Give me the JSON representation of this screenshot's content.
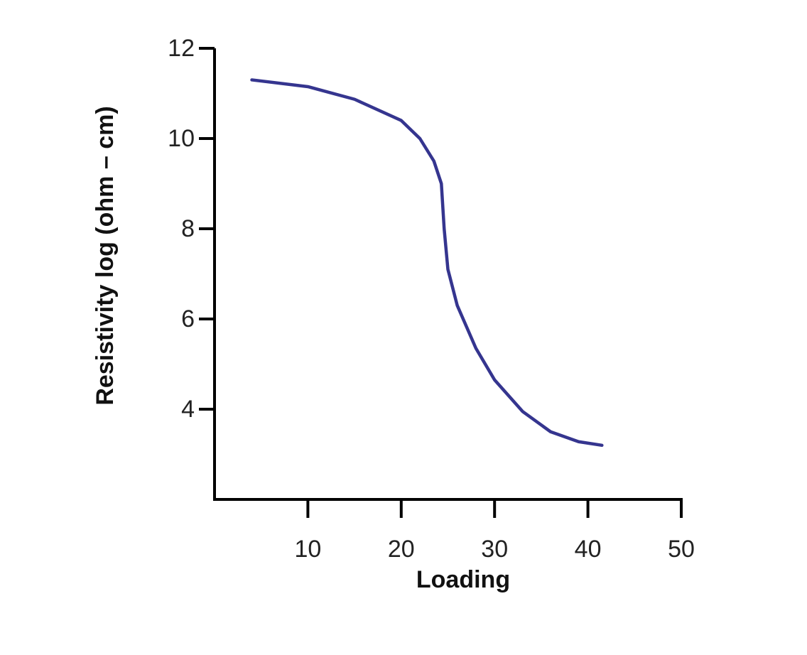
{
  "chart_data": {
    "type": "line",
    "x_label": "Loading",
    "y_label": "Resistivity log (ohm – cm)",
    "x": [
      4,
      10,
      15,
      20,
      22,
      23.5,
      24.3,
      24.6,
      25,
      26,
      28,
      30,
      33,
      36,
      39,
      41.5
    ],
    "series": [
      {
        "name": "Resistivity",
        "color": "#35358f",
        "values": [
          11.3,
          11.15,
          10.87,
          10.4,
          10.0,
          9.5,
          9.0,
          8.0,
          7.1,
          6.3,
          5.35,
          4.65,
          3.95,
          3.5,
          3.28,
          3.2
        ]
      }
    ],
    "xlim": [
      0,
      50
    ],
    "xticks": [
      10,
      20,
      30,
      40,
      50
    ],
    "ylim": [
      2,
      12
    ],
    "yticks": [
      4,
      6,
      8,
      10,
      12
    ],
    "grid": false
  }
}
